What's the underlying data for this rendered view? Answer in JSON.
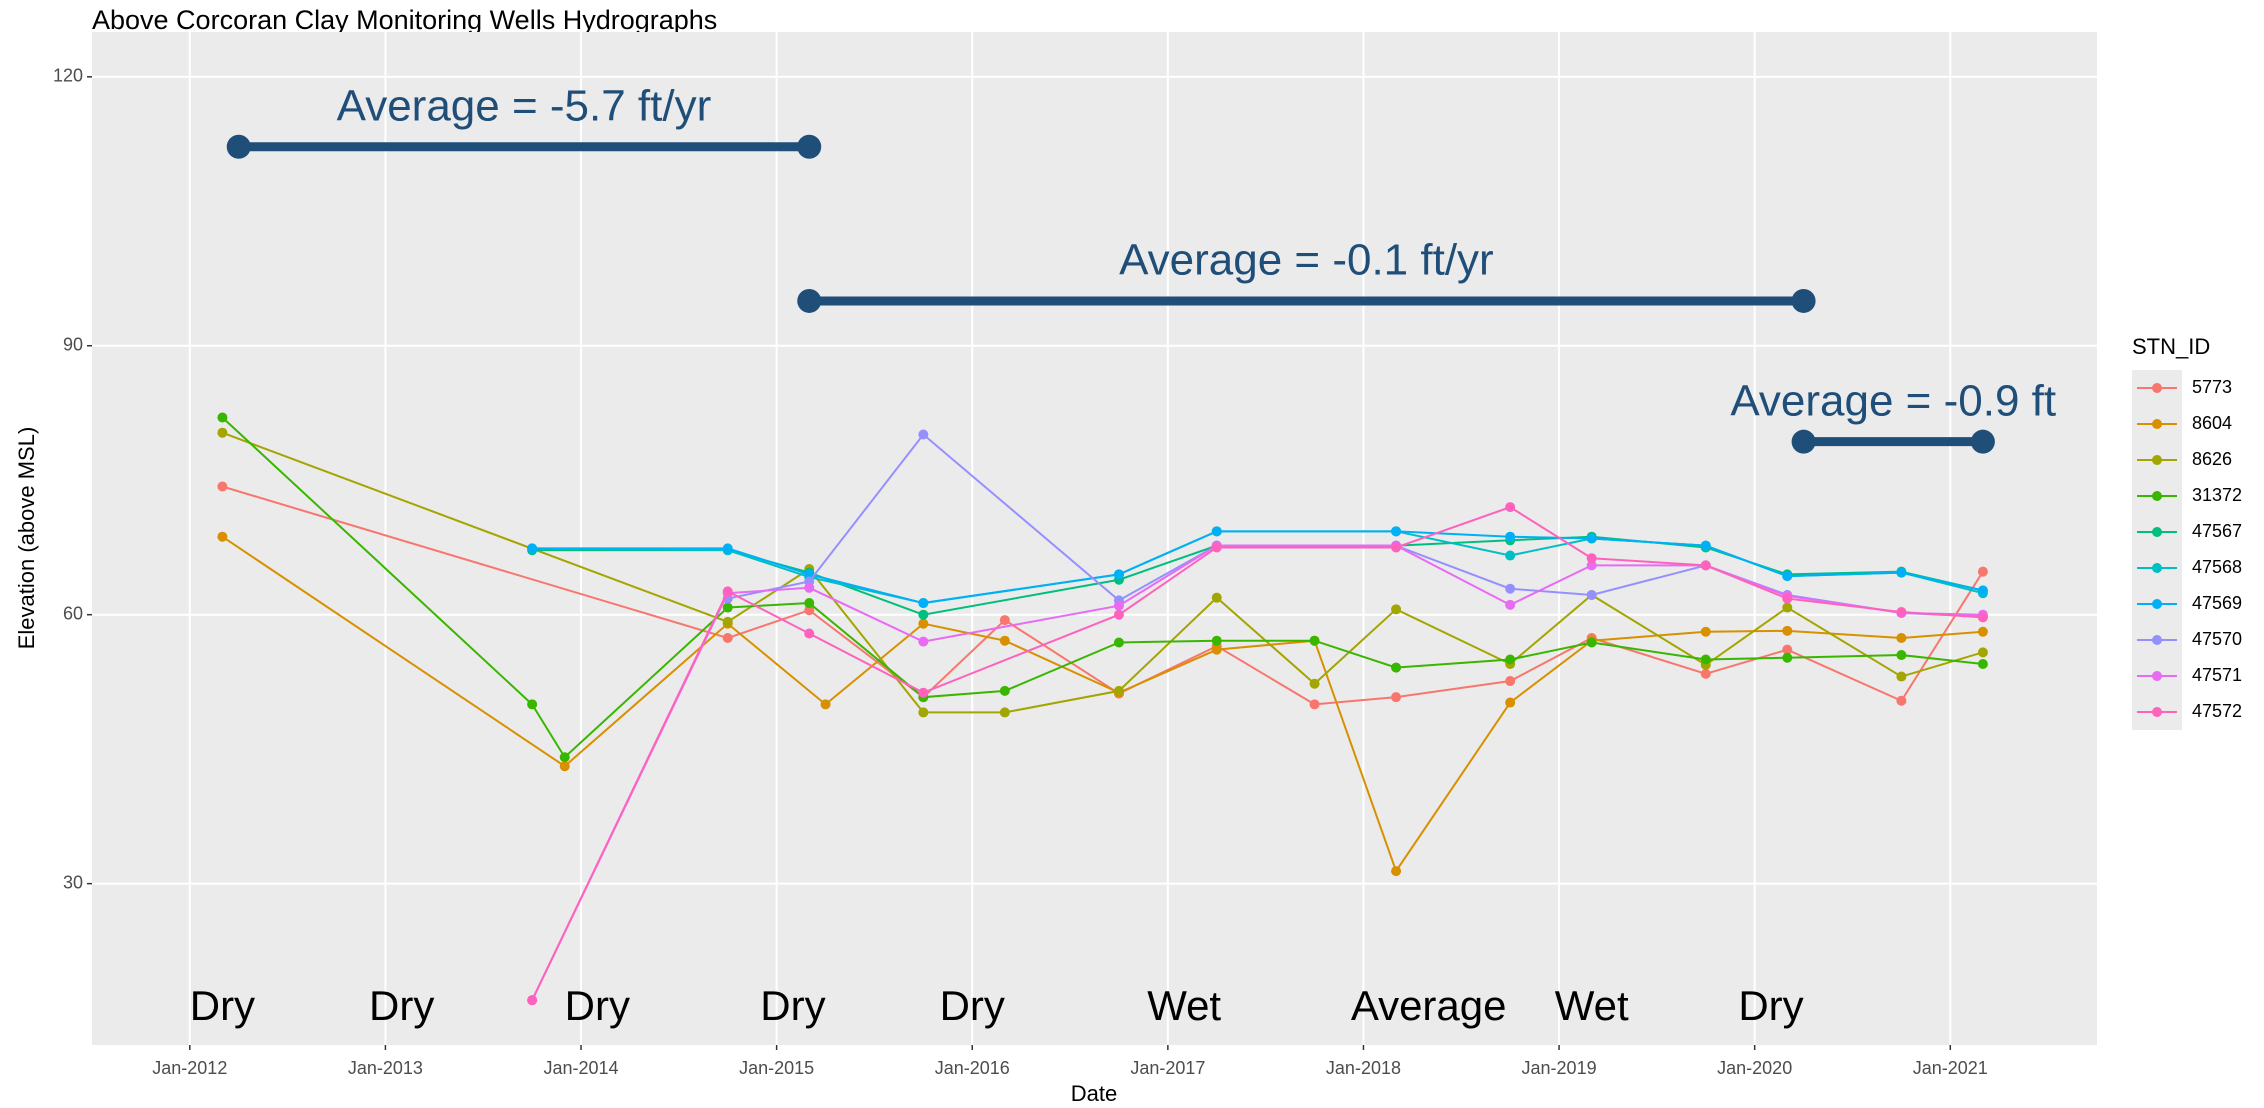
{
  "chart_data": {
    "type": "line",
    "title": "Above Corcoran Clay Monitoring Wells Hydrographs",
    "x_label": "Date",
    "y_label": "Elevation (above MSL)",
    "legend_title": "STN_ID",
    "legend_position": "right",
    "grid": true,
    "xlim": [
      "2011-07",
      "2021-10"
    ],
    "xticks": [
      {
        "value": "2012-01",
        "label": "Jan-2012"
      },
      {
        "value": "2013-01",
        "label": "Jan-2013"
      },
      {
        "value": "2014-01",
        "label": "Jan-2014"
      },
      {
        "value": "2015-01",
        "label": "Jan-2015"
      },
      {
        "value": "2016-01",
        "label": "Jan-2016"
      },
      {
        "value": "2017-01",
        "label": "Jan-2017"
      },
      {
        "value": "2018-01",
        "label": "Jan-2018"
      },
      {
        "value": "2019-01",
        "label": "Jan-2019"
      },
      {
        "value": "2020-01",
        "label": "Jan-2020"
      },
      {
        "value": "2021-01",
        "label": "Jan-2021"
      }
    ],
    "ylim": [
      12,
      125
    ],
    "yticks": [
      30,
      60,
      90,
      120
    ],
    "series": [
      {
        "name": "5773",
        "color": "#f8766d",
        "x": [
          "2012-03",
          "2014-10",
          "2015-03",
          "2015-10",
          "2016-03",
          "2016-10",
          "2017-04",
          "2017-10",
          "2018-03",
          "2018-10",
          "2019-03",
          "2019-10",
          "2020-03",
          "2020-10",
          "2021-03"
        ],
        "values": [
          74.3,
          57.4,
          60.5,
          50.8,
          59.4,
          51.2,
          56.5,
          50,
          50.8,
          52.6,
          57.4,
          53.4,
          56.1,
          50.4,
          64.8
        ]
      },
      {
        "name": "8604",
        "color": "#d89000",
        "x": [
          "2012-03",
          "2013-12",
          "2014-10",
          "2015-04",
          "2015-10",
          "2016-03",
          "2016-10",
          "2017-04",
          "2017-10",
          "2018-03",
          "2018-10",
          "2019-03",
          "2019-10",
          "2020-03",
          "2020-10",
          "2021-03"
        ],
        "values": [
          68.7,
          43.1,
          59,
          50,
          59,
          57.1,
          51.3,
          56.1,
          57.1,
          31.4,
          50.2,
          57.1,
          58.1,
          58.2,
          57.4,
          58.1
        ]
      },
      {
        "name": "8626",
        "color": "#a3a500",
        "x": [
          "2012-03",
          "2014-10",
          "2015-03",
          "2015-10",
          "2016-03",
          "2016-10",
          "2017-04",
          "2017-10",
          "2018-03",
          "2018-10",
          "2019-03",
          "2019-10",
          "2020-03",
          "2020-10",
          "2021-03"
        ],
        "values": [
          80.3,
          59.2,
          65.1,
          49.1,
          49.1,
          51.5,
          61.9,
          52.3,
          60.6,
          54.5,
          62.2,
          54.4,
          60.8,
          53.1,
          55.8
        ]
      },
      {
        "name": "31372",
        "color": "#39b600",
        "x": [
          "2012-03",
          "2013-10",
          "2013-12",
          "2014-10",
          "2015-03",
          "2015-10",
          "2016-03",
          "2016-10",
          "2017-04",
          "2017-10",
          "2018-03",
          "2018-10",
          "2019-03",
          "2019-10",
          "2020-03",
          "2020-10",
          "2021-03"
        ],
        "values": [
          82,
          50,
          44.1,
          60.8,
          61.3,
          50.8,
          51.5,
          56.9,
          57.1,
          57.1,
          54.1,
          55,
          56.9,
          55,
          55.2,
          55.5,
          54.5
        ]
      },
      {
        "name": "47567",
        "color": "#00bf7d",
        "x": [
          "2013-10",
          "2014-10",
          "2015-03",
          "2015-10",
          "2016-10",
          "2017-04",
          "2018-03",
          "2018-10",
          "2019-03",
          "2019-10",
          "2020-03",
          "2020-10",
          "2021-03"
        ],
        "values": [
          67.2,
          67.2,
          64.7,
          60,
          63.9,
          67.7,
          67.7,
          68.3,
          68.7,
          67.5,
          64.5,
          64.8,
          62.7
        ]
      },
      {
        "name": "47568",
        "color": "#00bfc4",
        "x": [
          "2013-10",
          "2014-10",
          "2015-03",
          "2015-10",
          "2016-10",
          "2017-04",
          "2018-03",
          "2018-10",
          "2019-03",
          "2019-10",
          "2020-03",
          "2020-10",
          "2021-03"
        ],
        "values": [
          67.4,
          67.2,
          64.2,
          61.3,
          64.5,
          69.3,
          69.3,
          66.6,
          68.5,
          67.7,
          64.3,
          64.7,
          62.4
        ]
      },
      {
        "name": "47569",
        "color": "#00b0f6",
        "x": [
          "2013-10",
          "2014-10",
          "2015-03",
          "2015-10",
          "2016-10",
          "2017-04",
          "2018-03",
          "2018-10",
          "2019-03",
          "2019-10",
          "2020-03",
          "2020-10",
          "2021-03"
        ],
        "values": [
          67.4,
          67.4,
          64.5,
          61.3,
          64.5,
          69.3,
          69.3,
          68.7,
          68.5,
          67.7,
          64.3,
          64.7,
          62.7
        ]
      },
      {
        "name": "47570",
        "color": "#9590ff",
        "x": [
          "2014-10",
          "2015-03",
          "2015-10",
          "2016-10",
          "2017-04",
          "2018-03",
          "2018-10",
          "2019-03",
          "2019-10",
          "2020-03",
          "2020-10",
          "2021-03"
        ],
        "values": [
          61.8,
          63.7,
          80.1,
          61.6,
          67.7,
          67.7,
          62.9,
          62.2,
          65.5,
          62.2,
          60.2,
          59.8
        ]
      },
      {
        "name": "47571",
        "color": "#e76bf3",
        "x": [
          "2013-10",
          "2014-10",
          "2015-03",
          "2015-10",
          "2016-10",
          "2017-04",
          "2018-03",
          "2018-10",
          "2019-03",
          "2019-10",
          "2020-03",
          "2020-10",
          "2021-03"
        ],
        "values": [
          17,
          62.4,
          63,
          57,
          61,
          67.7,
          67.7,
          61.1,
          65.5,
          65.5,
          62.1,
          60.2,
          60
        ]
      },
      {
        "name": "47572",
        "color": "#ff62bc",
        "x": [
          "2013-10",
          "2014-10",
          "2015-03",
          "2015-10",
          "2016-10",
          "2017-04",
          "2018-03",
          "2018-10",
          "2019-03",
          "2019-10",
          "2020-03",
          "2020-10",
          "2021-03"
        ],
        "values": [
          17,
          62.6,
          57.9,
          51.3,
          60,
          67.5,
          67.5,
          72,
          66.3,
          65.5,
          61.8,
          60.3,
          59.7
        ]
      }
    ],
    "annotations": [
      {
        "text": "Average = -5.7 ft/yr",
        "x": [
          "2012-04",
          "2015-03"
        ],
        "y": 112.2,
        "color": "#1f4e79"
      },
      {
        "text": "Average = -0.1 ft/yr",
        "x": [
          "2015-03",
          "2020-04"
        ],
        "y": 95,
        "color": "#1f4e79"
      },
      {
        "text": "Average = -0.9 ft",
        "x": [
          "2020-04",
          "2021-03"
        ],
        "y": 79.3,
        "color": "#1f4e79"
      }
    ],
    "period_labels": [
      {
        "text": "Dry",
        "x": "2012-03",
        "y": 16
      },
      {
        "text": "Dry",
        "x": "2013-02",
        "y": 16
      },
      {
        "text": "Dry",
        "x": "2014-02",
        "y": 16
      },
      {
        "text": "Dry",
        "x": "2015-02",
        "y": 16
      },
      {
        "text": "Dry",
        "x": "2016-01",
        "y": 16
      },
      {
        "text": "Wet",
        "x": "2017-02",
        "y": 16
      },
      {
        "text": "Average",
        "x": "2018-05",
        "y": 16
      },
      {
        "text": "Wet",
        "x": "2019-03",
        "y": 16
      },
      {
        "text": "Dry",
        "x": "2020-02",
        "y": 16
      }
    ]
  }
}
